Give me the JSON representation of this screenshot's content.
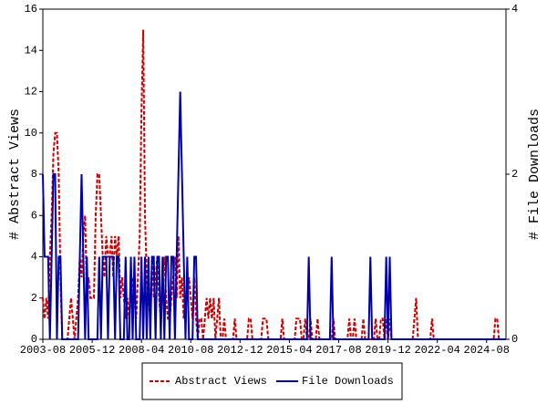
{
  "chart_data": {
    "type": "line",
    "y_label": "# Abstract Views",
    "y2_label": "# File Downloads",
    "x": [
      "2003-08",
      "2003-09",
      "2003-10",
      "2003-11",
      "2003-12",
      "2004-01",
      "2004-02",
      "2004-03",
      "2004-04",
      "2004-05",
      "2004-06",
      "2004-07",
      "2004-08",
      "2004-09",
      "2004-10",
      "2004-11",
      "2004-12",
      "2005-01",
      "2005-02",
      "2005-03",
      "2005-04",
      "2005-05",
      "2005-06",
      "2005-07",
      "2005-08",
      "2005-09",
      "2005-10",
      "2005-11",
      "2005-12",
      "2006-01",
      "2006-02",
      "2006-03",
      "2006-04",
      "2006-05",
      "2006-06",
      "2006-07",
      "2006-08",
      "2006-09",
      "2006-10",
      "2006-11",
      "2006-12",
      "2007-01",
      "2007-02",
      "2007-03",
      "2007-04",
      "2007-05",
      "2007-06",
      "2007-07",
      "2007-08",
      "2007-09",
      "2007-10",
      "2007-11",
      "2007-12",
      "2008-01",
      "2008-02",
      "2008-03",
      "2008-04",
      "2008-05",
      "2008-06",
      "2008-07",
      "2008-08",
      "2008-09",
      "2008-10",
      "2008-11",
      "2008-12",
      "2009-01",
      "2009-02",
      "2009-03",
      "2009-04",
      "2009-05",
      "2009-06",
      "2009-07",
      "2009-08",
      "2009-09",
      "2009-10",
      "2009-11",
      "2009-12",
      "2010-01",
      "2010-02",
      "2010-03",
      "2010-04",
      "2010-05",
      "2010-06",
      "2010-07",
      "2010-08",
      "2010-09",
      "2010-10",
      "2010-11",
      "2010-12",
      "2011-01",
      "2011-02",
      "2011-03",
      "2011-04",
      "2011-05",
      "2011-06",
      "2011-07",
      "2011-08",
      "2011-09",
      "2011-10",
      "2011-11",
      "2011-12",
      "2012-01",
      "2012-02",
      "2012-03",
      "2012-04",
      "2012-05",
      "2012-06",
      "2012-07",
      "2012-08",
      "2012-09",
      "2012-10",
      "2012-11",
      "2012-12",
      "2013-01",
      "2013-02",
      "2013-03",
      "2013-04",
      "2013-05",
      "2013-06",
      "2013-07",
      "2013-08",
      "2013-09",
      "2013-10",
      "2013-11",
      "2013-12",
      "2014-01",
      "2014-02",
      "2014-03",
      "2014-04",
      "2014-05",
      "2014-06",
      "2014-07",
      "2014-08",
      "2014-09",
      "2014-10",
      "2014-11",
      "2014-12",
      "2015-01",
      "2015-02",
      "2015-03",
      "2015-04",
      "2015-05",
      "2015-06",
      "2015-07",
      "2015-08",
      "2015-09",
      "2015-10",
      "2015-11",
      "2015-12",
      "2016-01",
      "2016-02",
      "2016-03",
      "2016-04",
      "2016-05",
      "2016-06",
      "2016-07",
      "2016-08",
      "2016-09",
      "2016-10",
      "2016-11",
      "2016-12",
      "2017-01",
      "2017-02",
      "2017-03",
      "2017-04",
      "2017-05",
      "2017-06",
      "2017-07",
      "2017-08",
      "2017-09",
      "2017-10",
      "2017-11",
      "2017-12",
      "2018-01",
      "2018-02",
      "2018-03",
      "2018-04",
      "2018-05",
      "2018-06",
      "2018-07",
      "2018-08",
      "2018-09",
      "2018-10",
      "2018-11",
      "2018-12",
      "2019-01",
      "2019-02",
      "2019-03",
      "2019-04",
      "2019-05",
      "2019-06",
      "2019-07",
      "2019-08",
      "2019-09",
      "2019-10",
      "2019-11",
      "2019-12",
      "2020-01",
      "2020-02",
      "2020-03",
      "2020-04",
      "2020-05",
      "2020-06",
      "2020-07",
      "2020-08",
      "2020-09",
      "2020-10",
      "2020-11",
      "2020-12",
      "2021-01",
      "2021-02",
      "2021-03",
      "2021-04",
      "2021-05",
      "2021-06",
      "2021-07",
      "2021-08",
      "2021-09",
      "2021-10",
      "2021-11",
      "2021-12",
      "2022-01",
      "2022-02",
      "2022-03",
      "2022-04",
      "2022-05",
      "2022-06",
      "2022-07",
      "2022-08",
      "2022-09",
      "2022-10",
      "2022-11",
      "2022-12",
      "2023-01",
      "2023-02",
      "2023-03",
      "2023-04",
      "2023-05",
      "2023-06",
      "2023-07",
      "2023-08",
      "2023-09",
      "2023-10",
      "2023-11",
      "2023-12",
      "2024-01",
      "2024-02",
      "2024-03",
      "2024-04",
      "2024-05",
      "2024-06",
      "2024-07",
      "2024-08",
      "2024-09",
      "2024-10",
      "2024-11",
      "2024-12",
      "2025-01",
      "2025-02",
      "2025-03",
      "2025-04",
      "2025-05",
      "2025-06",
      "2025-07"
    ],
    "series": [
      {
        "name": "Abstract Views",
        "color": "#cc0000",
        "dash": true,
        "values": [
          2,
          1,
          2,
          1,
          4,
          6,
          9,
          10,
          10,
          8,
          3,
          0,
          0,
          0,
          0,
          1,
          2,
          1,
          0,
          1,
          2,
          4,
          3,
          5,
          6,
          2,
          3,
          2,
          2,
          2,
          6,
          8,
          8,
          6,
          4,
          3,
          5,
          4,
          4,
          5,
          3,
          5,
          4,
          5,
          2,
          3,
          2,
          1,
          2,
          1,
          2,
          3,
          2,
          1,
          3,
          5,
          11,
          15,
          6,
          3,
          2,
          1,
          4,
          2,
          3,
          4,
          2,
          1,
          3,
          4,
          2,
          1,
          1,
          2,
          3,
          4,
          2,
          5,
          2,
          3,
          1,
          2,
          2,
          3,
          2,
          1,
          3,
          1,
          0,
          1,
          1,
          0,
          1,
          2,
          1,
          2,
          1,
          2,
          0,
          1,
          2,
          0,
          0,
          1,
          0,
          0,
          0,
          0,
          0,
          1,
          0,
          0,
          0,
          0,
          0,
          0,
          0,
          1,
          1,
          0,
          0,
          0,
          0,
          0,
          0,
          1,
          1,
          1,
          0,
          0,
          0,
          0,
          0,
          0,
          0,
          0,
          1,
          0,
          0,
          0,
          0,
          0,
          0,
          0,
          1,
          1,
          1,
          0,
          0,
          1,
          0,
          0,
          1,
          0,
          0,
          0,
          1,
          0,
          0,
          0,
          0,
          0,
          0,
          0,
          0,
          1,
          0,
          0,
          0,
          0,
          0,
          0,
          0,
          0,
          1,
          0,
          0,
          1,
          0,
          0,
          0,
          0,
          1,
          0,
          0,
          0,
          0,
          0,
          0,
          1,
          0,
          0,
          1,
          1,
          0,
          1,
          0,
          1,
          0,
          0,
          0,
          0,
          0,
          0,
          0,
          0,
          0,
          0,
          0,
          0,
          0,
          1,
          2,
          0,
          0,
          0,
          0,
          0,
          0,
          0,
          0,
          1,
          0,
          0,
          0,
          0,
          0,
          0,
          0,
          0,
          0,
          0,
          0,
          0,
          0,
          0,
          0,
          0,
          0,
          0,
          0,
          0,
          0,
          0,
          0,
          0,
          0,
          0,
          0,
          0,
          0,
          0,
          0,
          0,
          0,
          0,
          0,
          1,
          1,
          0,
          0,
          0,
          0,
          0
        ]
      },
      {
        "name": "File Downloads",
        "color": "#0000aa",
        "axis": "y2",
        "values": [
          2,
          1,
          1,
          1,
          0,
          1,
          2,
          2,
          0,
          1,
          1,
          0,
          0,
          0,
          0,
          0,
          0,
          0,
          0,
          0,
          0,
          1,
          2,
          1,
          0,
          1,
          0,
          0,
          0,
          0,
          0,
          0,
          1,
          0,
          1,
          1,
          1,
          0,
          1,
          1,
          1,
          0,
          1,
          1,
          0,
          0,
          0,
          1,
          0,
          0,
          1,
          0,
          1,
          0,
          0,
          0,
          1,
          0,
          1,
          0,
          1,
          0,
          1,
          1,
          0,
          1,
          1,
          0,
          1,
          0,
          1,
          1,
          0,
          1,
          1,
          0,
          1,
          2,
          3,
          2,
          1,
          0,
          1,
          0,
          0,
          0,
          1,
          1,
          0,
          0,
          0,
          0,
          0,
          0,
          0,
          0,
          0,
          0,
          0,
          0,
          0,
          0,
          0,
          0,
          0,
          0,
          0,
          0,
          0,
          0,
          0,
          0,
          0,
          0,
          0,
          0,
          0,
          0,
          0,
          0,
          0,
          0,
          0,
          0,
          0,
          0,
          0,
          0,
          0,
          0,
          0,
          0,
          0,
          0,
          0,
          0,
          0,
          0,
          0,
          0,
          0,
          0,
          0,
          0,
          0,
          0,
          0,
          0,
          0,
          0,
          0,
          1,
          0,
          0,
          0,
          0,
          0,
          0,
          0,
          0,
          0,
          0,
          0,
          0,
          1,
          0,
          0,
          0,
          0,
          0,
          0,
          0,
          0,
          0,
          0,
          0,
          0,
          0,
          0,
          0,
          0,
          0,
          0,
          0,
          0,
          0,
          1,
          0,
          0,
          0,
          0,
          0,
          0,
          0,
          0,
          1,
          0,
          1,
          0,
          0,
          0,
          0,
          0,
          0,
          0,
          0,
          0,
          0,
          0,
          0,
          0,
          0,
          0,
          0,
          0,
          0,
          0,
          0,
          0,
          0,
          0,
          0,
          0,
          0,
          0,
          0,
          0,
          0,
          0,
          0,
          0,
          0,
          0,
          0,
          0,
          0,
          0,
          0,
          0,
          0,
          0,
          0,
          0,
          0,
          0,
          0,
          0,
          0,
          0,
          0,
          0,
          0,
          0,
          0,
          0,
          0,
          0,
          0,
          0,
          0,
          0,
          0,
          0,
          0
        ]
      }
    ],
    "xlim": [
      "2003-08",
      "2025-07"
    ],
    "xticks": [
      "2003-08",
      "2005-12",
      "2008-04",
      "2010-08",
      "2012-12",
      "2015-04",
      "2017-08",
      "2019-12",
      "2022-04",
      "2024-08"
    ],
    "ylim": [
      0,
      16
    ],
    "yticks": [
      0,
      2,
      4,
      6,
      8,
      10,
      12,
      14,
      16
    ],
    "y2lim": [
      0,
      4
    ],
    "y2ticks": [
      0,
      2,
      4
    ],
    "legend": "bottom"
  }
}
